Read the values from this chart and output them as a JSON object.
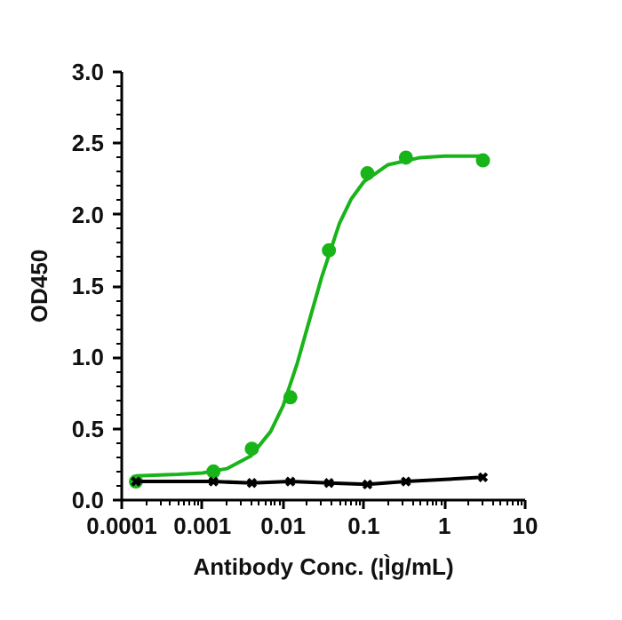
{
  "chart_data": {
    "type": "scatter",
    "xlabel": "Antibody Conc. (¦Ìg/mL)",
    "ylabel": "OD450",
    "log": "x",
    "grid": false,
    "xlim": [
      0.0001,
      10
    ],
    "xticks": [
      {
        "value": 0.0001,
        "label": "0.0001"
      },
      {
        "value": 0.001,
        "label": "0.001"
      },
      {
        "value": 0.01,
        "label": "0.01"
      },
      {
        "value": 0.1,
        "label": "0.1"
      },
      {
        "value": 1,
        "label": "1"
      },
      {
        "value": 10,
        "label": "10"
      }
    ],
    "ylim": [
      0,
      3
    ],
    "yticks": [
      {
        "value": 0,
        "label": "0.0"
      },
      {
        "value": 0.5,
        "label": "0.5"
      },
      {
        "value": 1,
        "label": "1.0"
      },
      {
        "value": 1.5,
        "label": "1.5"
      },
      {
        "value": 2,
        "label": "2.0"
      },
      {
        "value": 2.5,
        "label": "2.5"
      },
      {
        "value": 3,
        "label": "3.0"
      }
    ],
    "series": [
      {
        "type": "line",
        "color": "#19b419",
        "marker": "none",
        "x": [
          0.00015,
          0.0005,
          0.001,
          0.002,
          0.004,
          0.007,
          0.01,
          0.015,
          0.02,
          0.03,
          0.05,
          0.07,
          0.1,
          0.2,
          0.5,
          1,
          3
        ],
        "values": [
          0.17,
          0.18,
          0.19,
          0.22,
          0.31,
          0.48,
          0.66,
          0.96,
          1.21,
          1.56,
          1.94,
          2.11,
          2.23,
          2.35,
          2.4,
          2.41,
          2.41
        ]
      },
      {
        "color": "#19b419",
        "marker": "circle",
        "x": [
          0.00015,
          0.00137,
          0.0041,
          0.0123,
          0.037,
          0.111,
          0.333,
          3
        ],
        "values": [
          0.13,
          0.2,
          0.36,
          0.72,
          1.75,
          2.29,
          2.4,
          2.38
        ]
      },
      {
        "type": "line",
        "color": "#000000",
        "marker": "cross",
        "x": [
          0.00015,
          0.00137,
          0.0041,
          0.0123,
          0.037,
          0.111,
          0.333,
          3
        ],
        "values": [
          0.13,
          0.13,
          0.12,
          0.13,
          0.12,
          0.11,
          0.13,
          0.16
        ]
      }
    ]
  }
}
